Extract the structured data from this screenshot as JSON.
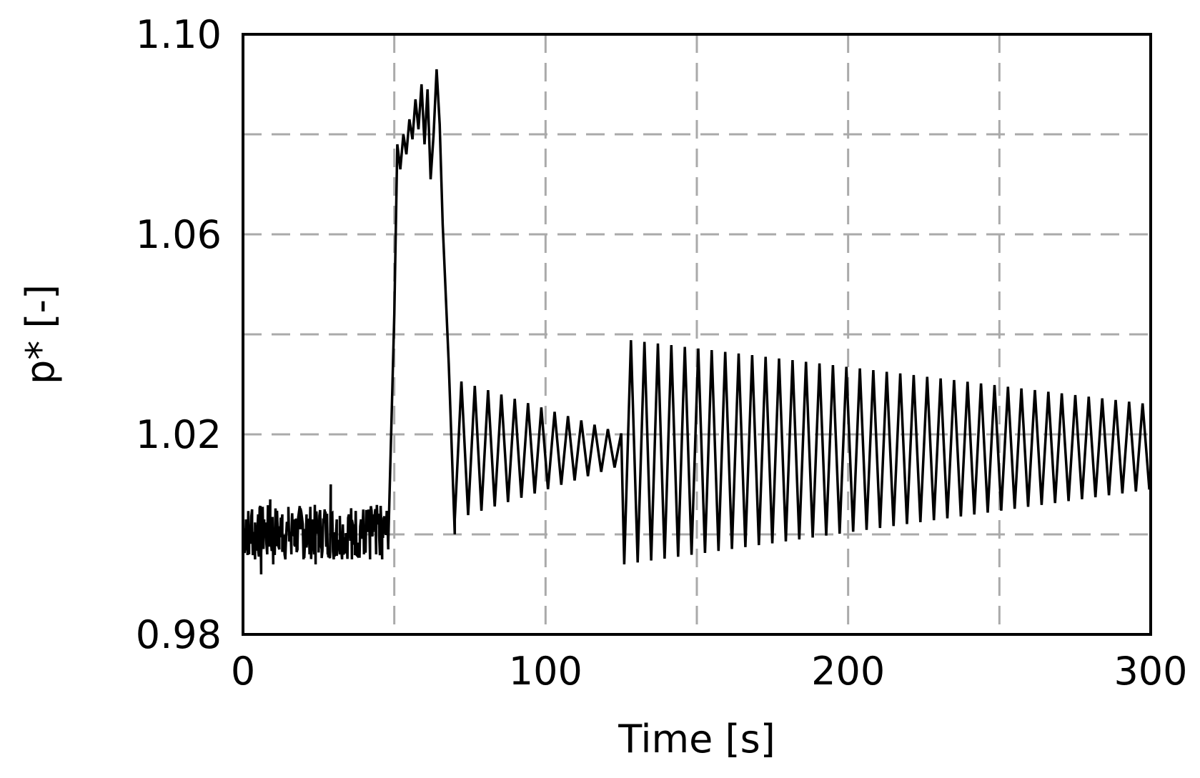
{
  "chart_data": {
    "type": "line",
    "title": "",
    "xlabel": "Time [s]",
    "ylabel": "p* [-]",
    "xlim": [
      0,
      300
    ],
    "ylim": [
      0.98,
      1.1
    ],
    "x_ticks": [
      0,
      100,
      200,
      300
    ],
    "x_tick_labels": [
      "0",
      "100",
      "200",
      "300"
    ],
    "y_ticks": [
      0.98,
      1.02,
      1.06,
      1.1
    ],
    "y_tick_labels": [
      "0.98",
      "1.02",
      "1.06",
      "1.10"
    ],
    "x_grid": [
      50,
      100,
      150,
      200,
      250
    ],
    "y_grid": [
      1.0,
      1.02,
      1.04,
      1.06,
      1.08
    ],
    "grid": true,
    "grid_style": "dashed",
    "colors": {
      "line": "#000000",
      "grid": "#aaaaaa",
      "frame": "#000000"
    },
    "series": [
      {
        "segments": [
          {
            "kind": "noise",
            "x_start": 0,
            "x_end": 48,
            "points": [
              [
                0,
                1.0
              ],
              [
                1,
                1.003
              ],
              [
                2,
                0.996
              ],
              [
                3,
                1.005
              ],
              [
                4,
                0.995
              ],
              [
                5,
                1.004
              ],
              [
                6,
                0.992
              ],
              [
                7,
                1.003
              ],
              [
                8,
                0.996
              ],
              [
                9,
                1.007
              ],
              [
                10,
                0.994
              ],
              [
                11,
                1.001
              ],
              [
                12,
                0.997
              ],
              [
                13,
                1.004
              ],
              [
                14,
                0.995
              ],
              [
                15,
                1.002
              ],
              [
                16,
                0.996
              ],
              [
                17,
                1.003
              ],
              [
                18,
                0.997
              ],
              [
                19,
                1.001
              ],
              [
                20,
                0.995
              ],
              [
                21,
                1.004
              ],
              [
                22,
                0.996
              ],
              [
                23,
                1.003
              ],
              [
                24,
                0.994
              ],
              [
                25,
                1.002
              ],
              [
                26,
                0.997
              ],
              [
                27,
                1.005
              ],
              [
                28,
                0.996
              ],
              [
                29,
                1.01
              ],
              [
                30,
                0.995
              ],
              [
                31,
                1.003
              ],
              [
                32,
                0.996
              ],
              [
                33,
                1.002
              ],
              [
                34,
                0.997
              ],
              [
                35,
                1.004
              ],
              [
                36,
                0.995
              ],
              [
                37,
                1.002
              ],
              [
                38,
                0.997
              ],
              [
                39,
                1.003
              ],
              [
                40,
                0.996
              ],
              [
                41,
                1.002
              ],
              [
                42,
                0.995
              ],
              [
                43,
                1.004
              ],
              [
                44,
                0.996
              ],
              [
                45,
                1.003
              ],
              [
                46,
                0.995
              ],
              [
                47,
                1.002
              ],
              [
                48,
                0.997
              ]
            ]
          },
          {
            "kind": "peak",
            "x_start": 48,
            "x_end": 68,
            "points": [
              [
                48,
                0.998
              ],
              [
                50,
                1.044
              ],
              [
                51,
                1.078
              ],
              [
                52,
                1.073
              ],
              [
                53,
                1.08
              ],
              [
                54,
                1.076
              ],
              [
                55,
                1.083
              ],
              [
                56,
                1.079
              ],
              [
                57,
                1.087
              ],
              [
                58,
                1.081
              ],
              [
                59,
                1.09
              ],
              [
                60,
                1.078
              ],
              [
                61,
                1.089
              ],
              [
                62,
                1.071
              ],
              [
                63,
                1.08
              ],
              [
                64,
                1.093
              ],
              [
                65,
                1.082
              ],
              [
                66,
                1.062
              ],
              [
                68,
                1.034
              ],
              [
                70,
                1.0
              ]
            ]
          },
          {
            "kind": "damped",
            "x_start": 70,
            "x_end": 126,
            "period": 4.4,
            "center_start": 1.017,
            "center_end": 1.017,
            "amplitude_start": 0.014,
            "amplitude_end": 0.003
          },
          {
            "kind": "oscillation",
            "x_start": 126,
            "x_end": 300,
            "period": 4.45,
            "center_start": 1.0165,
            "center_end": 1.0175,
            "amplitude_start": 0.0225,
            "amplitude_end": 0.0085
          }
        ]
      }
    ]
  }
}
